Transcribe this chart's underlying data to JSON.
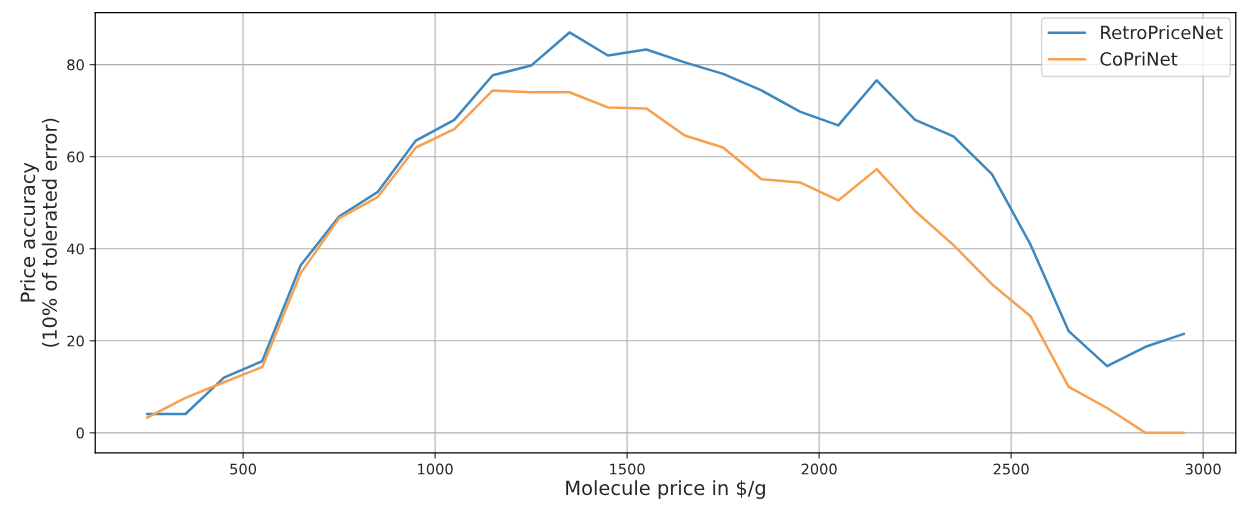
{
  "chart_data": {
    "type": "line",
    "xlabel": "Molecule price in $/g",
    "ylabel": "Price accuracy\n(10% of tolerated error)",
    "x": [
      250,
      350,
      450,
      550,
      650,
      750,
      850,
      950,
      1050,
      1150,
      1250,
      1350,
      1450,
      1550,
      1650,
      1750,
      1850,
      1950,
      2050,
      2150,
      2250,
      2350,
      2450,
      2550,
      2650,
      2750,
      2850,
      2950
    ],
    "series": [
      {
        "name": "RetroPriceNet",
        "color": "#3d88bf",
        "values": [
          4.1,
          4.1,
          12,
          15.6,
          36.4,
          47,
          52.3,
          63.5,
          68,
          77.7,
          79.8,
          87,
          82,
          83.3,
          80.5,
          78,
          74.4,
          69.8,
          66.8,
          76.6,
          68,
          64.4,
          56.2,
          41,
          22.1,
          14.5,
          18.7,
          21.5
        ]
      },
      {
        "name": "CoPriNet",
        "color": "#f7a150",
        "values": [
          3.3,
          7.6,
          11,
          14.3,
          34.7,
          46.6,
          51.2,
          62,
          66,
          74.4,
          74,
          74,
          70.7,
          70.5,
          64.6,
          62,
          55.1,
          54.4,
          50.5,
          57.3,
          48.2,
          40.8,
          32.3,
          25.4,
          10,
          5.4,
          0,
          0
        ]
      }
    ],
    "xlim": [
      115,
      3085
    ],
    "xticks": [
      500,
      1000,
      1500,
      2000,
      2500,
      3000
    ],
    "ylim": [
      -4.35,
      91.3
    ],
    "yticks": [
      0,
      20,
      40,
      60,
      80
    ],
    "grid": true,
    "legend": "top right"
  }
}
